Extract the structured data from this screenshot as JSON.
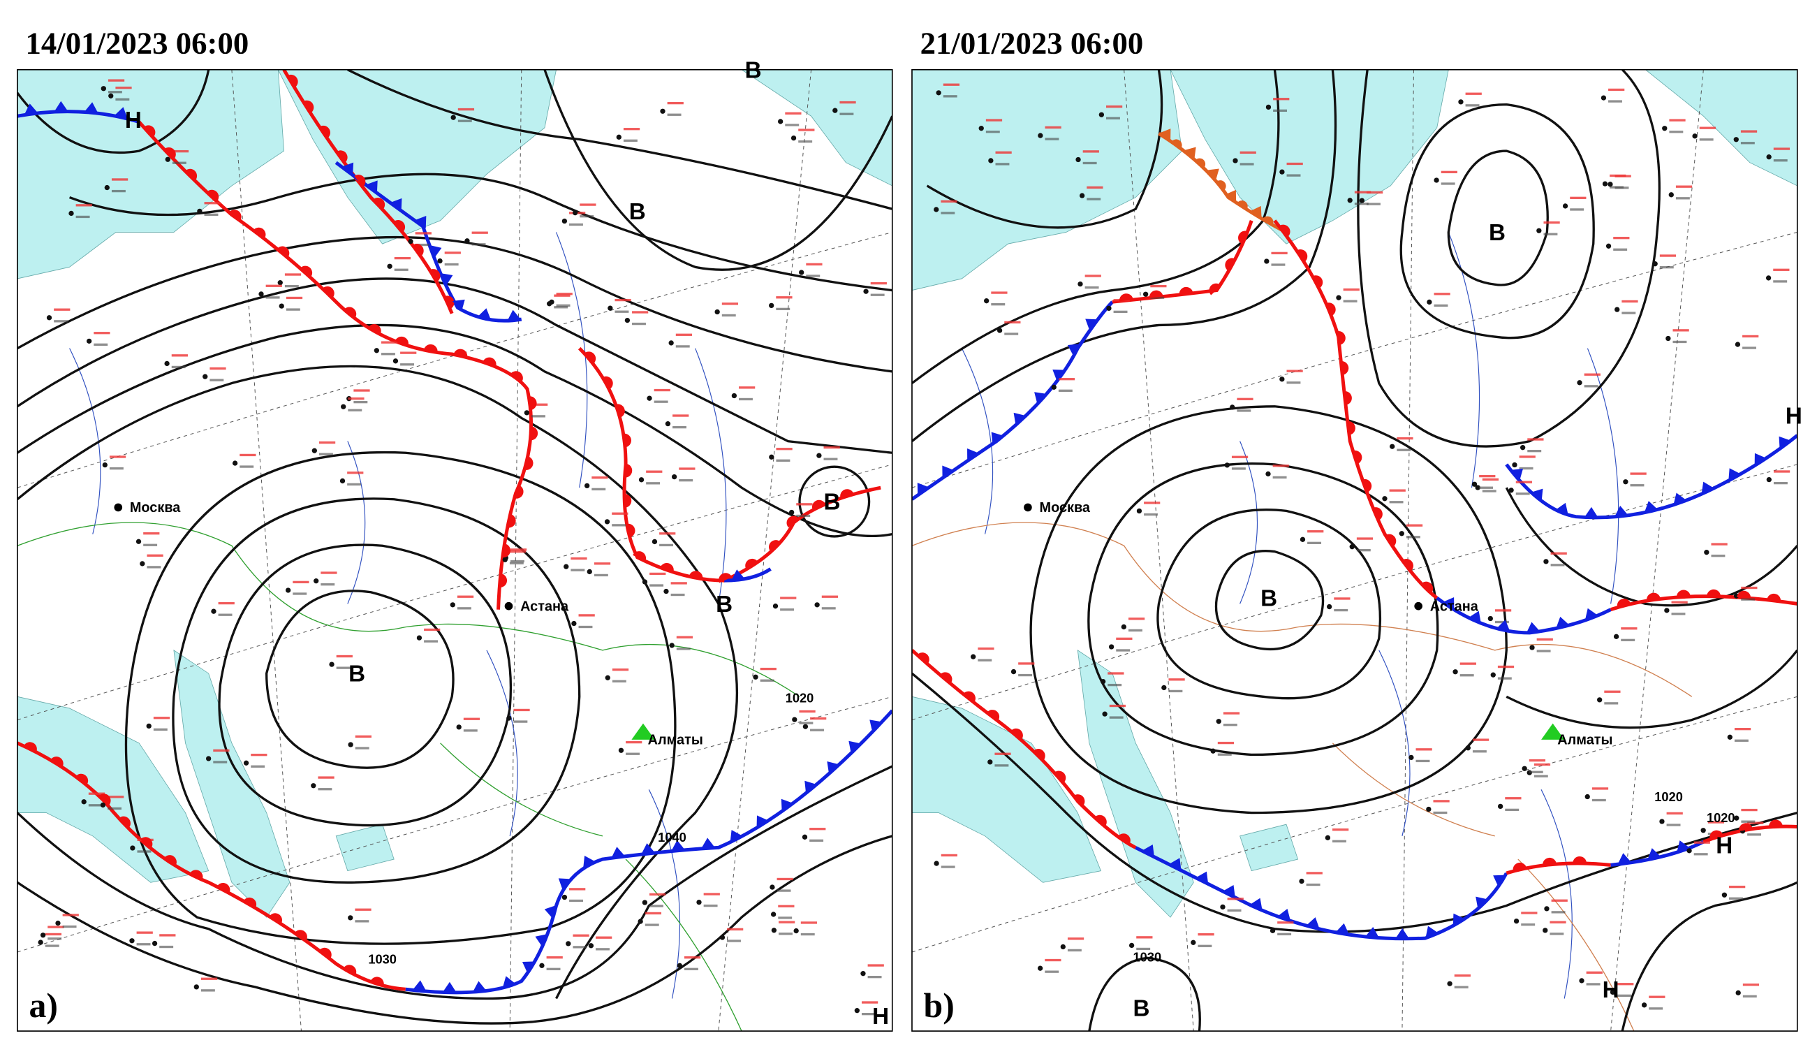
{
  "panels": [
    {
      "title": "14/01/2023 06:00",
      "label": "a)",
      "cities": [
        "Москва",
        "Астана",
        "Алматы"
      ],
      "centers": [
        "Н",
        "В",
        "В",
        "В",
        "В",
        "В",
        "Н"
      ],
      "isobar_labels": [
        "1040",
        "1030",
        "1020"
      ]
    },
    {
      "title": "21/01/2023 06:00",
      "label": "b)",
      "cities": [
        "Москва",
        "Астана",
        "Алматы"
      ],
      "centers": [
        "В",
        "В",
        "Н",
        "Н",
        "Н",
        "В"
      ],
      "isobar_labels": [
        "1020",
        "1030",
        "1020"
      ]
    }
  ]
}
